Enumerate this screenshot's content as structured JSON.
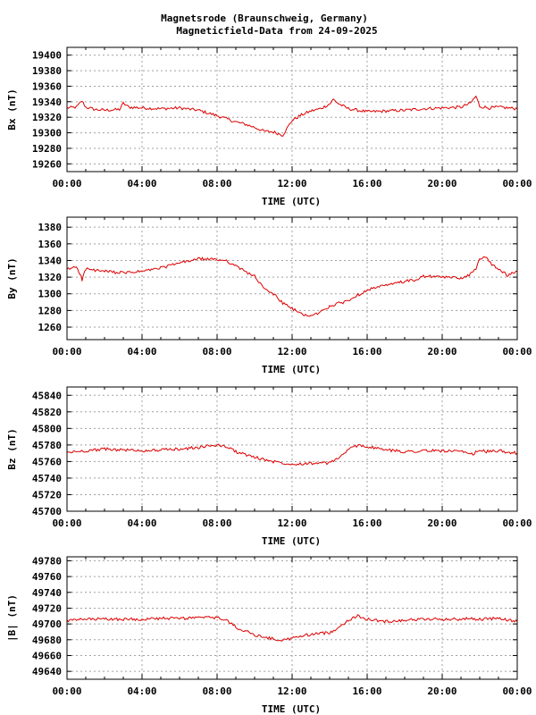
{
  "title_line1": "Magnetsrode (Braunschweig, Germany)",
  "title_line2": "Magneticfield-Data from 24-09-2025",
  "colors": {
    "series": "#dd0000",
    "grid": "#a0a0a0",
    "axis": "#000000",
    "background": "#ffffff"
  },
  "chart_data": [
    {
      "type": "line",
      "ylabel": "Bx (nT)",
      "xlabel": "TIME (UTC)",
      "xlim": [
        0,
        24
      ],
      "ylim": [
        19250,
        19410
      ],
      "yticks": [
        19260,
        19280,
        19300,
        19320,
        19340,
        19360,
        19380,
        19400
      ],
      "xticks": [
        "00:00",
        "04:00",
        "08:00",
        "12:00",
        "16:00",
        "20:00",
        "00:00"
      ],
      "grid": true,
      "series": [
        {
          "x": [
            0,
            0.5,
            0.8,
            1.0,
            1.5,
            2.0,
            2.8,
            3.0,
            3.3,
            4.0,
            5.0,
            6.0,
            7.0,
            8.0,
            9.0,
            9.5,
            10.0,
            10.5,
            11.0,
            11.5,
            12.0,
            12.5,
            13.0,
            13.5,
            14.0,
            14.2,
            14.5,
            15.0,
            15.5,
            16.0,
            17.0,
            18.0,
            19.0,
            20.0,
            21.0,
            21.5,
            21.8,
            22.0,
            22.5,
            23.0,
            23.5,
            24.0
          ],
          "y": [
            19332,
            19333,
            19341,
            19333,
            19330,
            19329,
            19330,
            19338,
            19333,
            19332,
            19331,
            19332,
            19329,
            19322,
            19314,
            19311,
            19307,
            19302,
            19301,
            19297,
            19316,
            19323,
            19328,
            19331,
            19337,
            19343,
            19337,
            19331,
            19329,
            19327,
            19328,
            19329,
            19331,
            19332,
            19333,
            19338,
            19347,
            19334,
            19332,
            19333,
            19332,
            19331
          ]
        }
      ]
    },
    {
      "type": "line",
      "ylabel": "By (nT)",
      "xlabel": "TIME (UTC)",
      "xlim": [
        0,
        24
      ],
      "ylim": [
        1245,
        1392
      ],
      "yticks": [
        1260,
        1280,
        1300,
        1320,
        1340,
        1360,
        1380
      ],
      "xticks": [
        "00:00",
        "04:00",
        "08:00",
        "12:00",
        "16:00",
        "20:00",
        "00:00"
      ],
      "grid": true,
      "series": [
        {
          "x": [
            0,
            0.5,
            0.7,
            0.8,
            1.0,
            1.5,
            2.0,
            3.0,
            4.0,
            5.0,
            6.0,
            7.0,
            8.0,
            8.5,
            9.0,
            10.0,
            10.5,
            11.0,
            11.5,
            12.0,
            12.5,
            13.0,
            13.5,
            14.0,
            15.0,
            16.0,
            17.0,
            18.0,
            18.5,
            19.0,
            20.0,
            21.0,
            21.5,
            21.8,
            22.0,
            22.3,
            22.5,
            23.0,
            23.5,
            24.0
          ],
          "y": [
            1329,
            1333,
            1324,
            1317,
            1330,
            1328,
            1327,
            1325,
            1327,
            1331,
            1337,
            1342,
            1341,
            1340,
            1333,
            1321,
            1306,
            1300,
            1289,
            1282,
            1276,
            1273,
            1278,
            1285,
            1292,
            1305,
            1310,
            1315,
            1316,
            1321,
            1320,
            1319,
            1323,
            1330,
            1343,
            1344,
            1338,
            1330,
            1322,
            1327
          ]
        }
      ]
    },
    {
      "type": "line",
      "ylabel": "Bz (nT)",
      "xlabel": "TIME (UTC)",
      "xlim": [
        0,
        24
      ],
      "ylim": [
        45700,
        45850
      ],
      "yticks": [
        45700,
        45720,
        45740,
        45760,
        45780,
        45800,
        45820,
        45840
      ],
      "xticks": [
        "00:00",
        "04:00",
        "08:00",
        "12:00",
        "16:00",
        "20:00",
        "00:00"
      ],
      "grid": true,
      "series": [
        {
          "x": [
            0,
            1,
            2,
            3,
            4,
            5,
            6,
            7,
            8,
            8.5,
            9,
            10,
            11,
            12,
            13,
            14,
            14.5,
            15,
            15.5,
            16,
            17,
            18,
            19,
            20,
            21,
            21.5,
            22,
            22.5,
            23,
            24
          ],
          "y": [
            45771,
            45773,
            45775,
            45774,
            45773,
            45774,
            45775,
            45777,
            45780,
            45778,
            45772,
            45765,
            45760,
            45757,
            45758,
            45758,
            45765,
            45774,
            45780,
            45778,
            45774,
            45772,
            45773,
            45773,
            45772,
            45768,
            45773,
            45772,
            45773,
            45770
          ]
        }
      ]
    },
    {
      "type": "line",
      "ylabel": "|B| (nT)",
      "xlabel": "TIME (UTC)",
      "xlim": [
        0,
        24
      ],
      "ylim": [
        49630,
        49785
      ],
      "yticks": [
        49640,
        49660,
        49680,
        49700,
        49720,
        49740,
        49760,
        49780
      ],
      "xticks": [
        "00:00",
        "04:00",
        "08:00",
        "12:00",
        "16:00",
        "20:00",
        "00:00"
      ],
      "grid": true,
      "series": [
        {
          "x": [
            0,
            1,
            2,
            3,
            4,
            5,
            6,
            7,
            8,
            8.5,
            9,
            10,
            11,
            11.5,
            12,
            13,
            14,
            14.5,
            15,
            15.5,
            16,
            17,
            18,
            19,
            20,
            21,
            21.5,
            22,
            23,
            24
          ],
          "y": [
            49704,
            49706,
            49706,
            49706,
            49706,
            49707,
            49707,
            49708,
            49708,
            49705,
            49696,
            49686,
            49681,
            49679,
            49682,
            49687,
            49689,
            49696,
            49705,
            49710,
            49706,
            49703,
            49705,
            49706,
            49706,
            49706,
            49707,
            49706,
            49707,
            49703
          ]
        }
      ]
    }
  ]
}
